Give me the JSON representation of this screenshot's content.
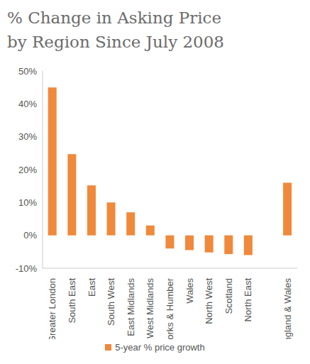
{
  "chart_data": {
    "type": "bar",
    "title": "% Change in Asking Price\nby Region Since July 2008",
    "categories": [
      "Greater London",
      "South East",
      "East",
      "South West",
      "East  Midlands",
      "West Midlands",
      "Yorks & Humber",
      "Wales",
      "North West",
      "Scotland",
      "North East",
      null,
      "England & Wales"
    ],
    "series": [
      {
        "name": "5-year % price growth",
        "color": "#f0893b",
        "values": [
          45,
          24.7,
          15.2,
          10,
          7,
          3,
          -4,
          -4.5,
          -5.2,
          -5.7,
          -6,
          null,
          16
        ]
      }
    ],
    "ylim": [
      -10,
      50
    ],
    "yticks": [
      {
        "value": -10,
        "label": "-10%"
      },
      {
        "value": 0,
        "label": "0%"
      },
      {
        "value": 10,
        "label": "10%"
      },
      {
        "value": 20,
        "label": "20%"
      },
      {
        "value": 30,
        "label": "30%"
      },
      {
        "value": 40,
        "label": "40%"
      },
      {
        "value": 50,
        "label": "50%"
      }
    ],
    "grid": false,
    "legend": "bottom"
  }
}
